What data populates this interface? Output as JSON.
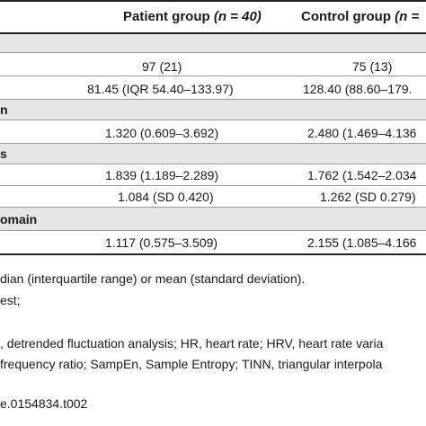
{
  "header": {
    "patient_label": "Patient group",
    "patient_n": "(n = 40)",
    "control_label": "Control group",
    "control_n": "(n ="
  },
  "rows": [
    {
      "patient": "97 (21)",
      "control": "75 (13)"
    },
    {
      "patient": "81.45 (IQR 54.40–133.97)",
      "control": "128.40 (88.60–179."
    },
    {
      "patient": "1.320 (0.609–3.692)",
      "control": "2.480 (1.469–4.136"
    },
    {
      "patient": "1.839 (1.189–2.289)",
      "control": "1.762 (1.542–2.034"
    },
    {
      "patient": "1.084 (SD 0.420)",
      "control": "1.262 (SD 0.279)"
    },
    {
      "patient": "1.117 (0.575–3.509)",
      "control": "2.155 (1.085–4.166"
    }
  ],
  "sections": [
    "n",
    "s",
    "omain"
  ],
  "notes": [
    "dian (interquartile range) or mean (standard deviation).",
    "est;",
    ", detrended fluctuation analysis; HR, heart rate; HRV, heart rate varia",
    "frequency ratio; SampEn, Sample Entropy; TINN, triangular interpola",
    "e.0154834.t002"
  ]
}
